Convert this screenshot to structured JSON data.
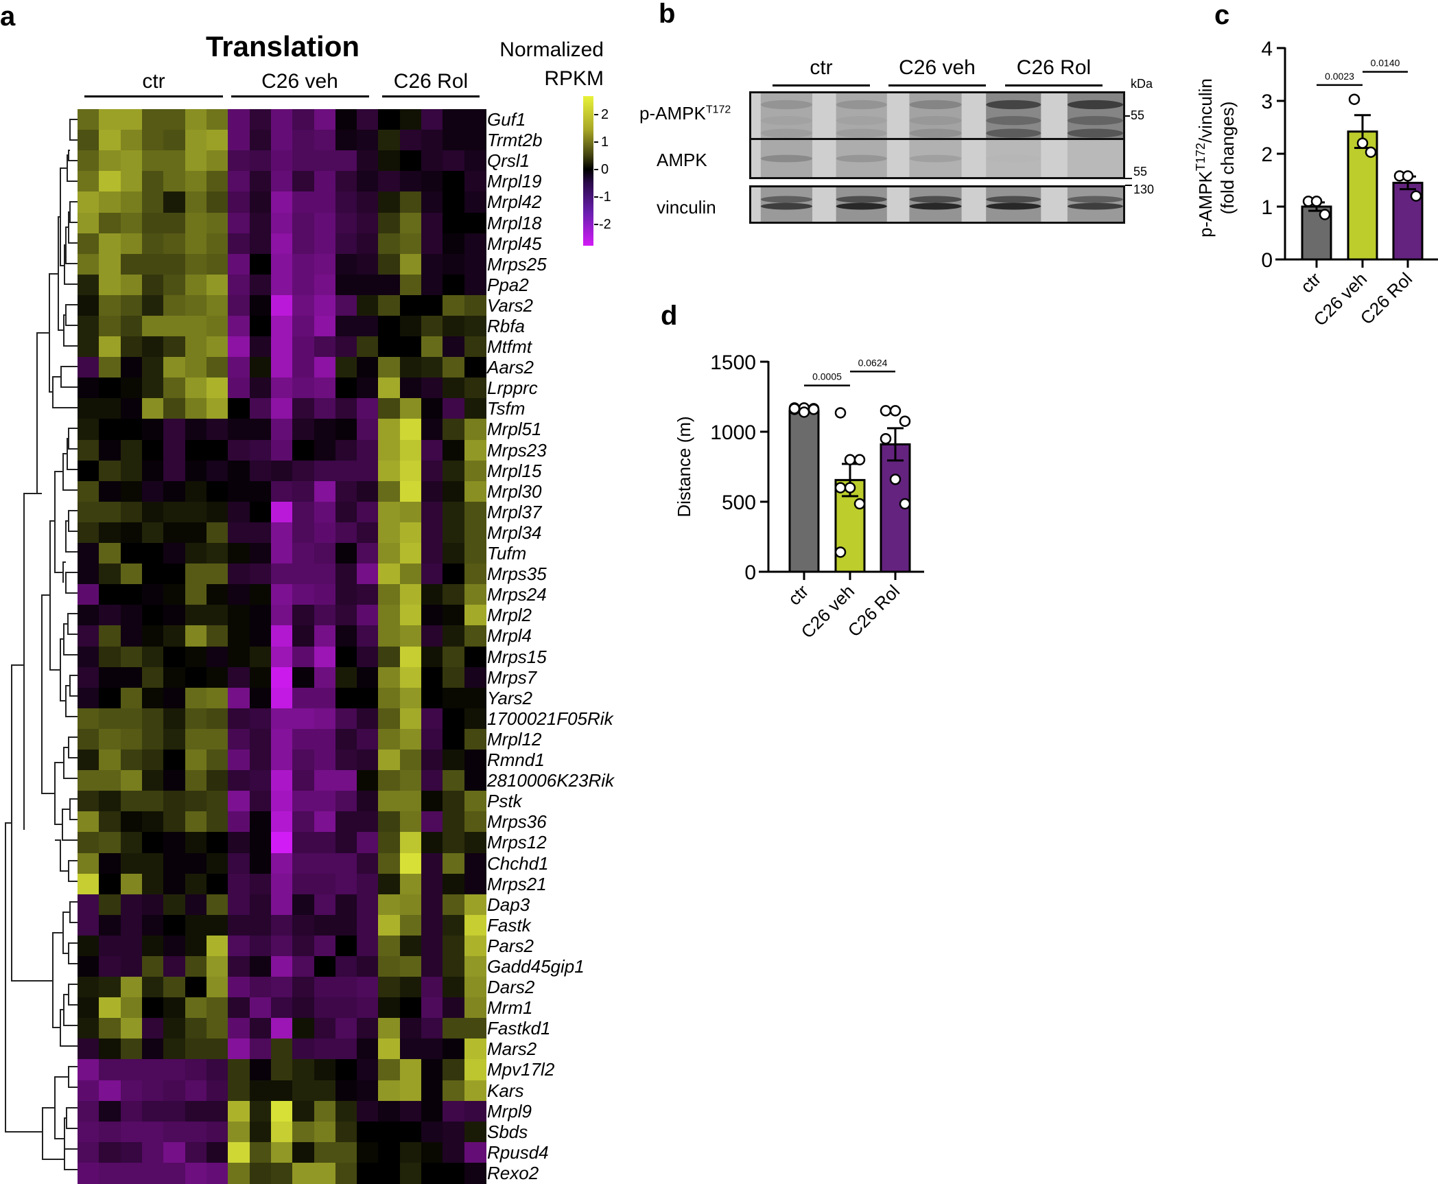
{
  "panels": {
    "a": "a",
    "b": "b",
    "c": "c",
    "d": "d"
  },
  "heatmap": {
    "title": "Translation",
    "groups": [
      {
        "label": "ctr",
        "n": 7
      },
      {
        "label": "C26 veh",
        "n": 6
      },
      {
        "label": "C26 Rol",
        "n": 6
      }
    ],
    "colorbar": {
      "title_line1": "Normalized",
      "title_line2": "RPKM",
      "ticks": [
        "2",
        "1",
        "0",
        "-1",
        "-2"
      ],
      "colors": {
        "high": "#e8f23a",
        "mid": "#000000",
        "low": "#d21cf5"
      }
    },
    "genes": [
      "Guf1",
      "Trmt2b",
      "Qrsl1",
      "Mrpl19",
      "Mrpl42",
      "Mrpl18",
      "Mrpl45",
      "Mrps25",
      "Ppa2",
      "Vars2",
      "Rbfa",
      "Mtfmt",
      "Aars2",
      "Lrpprc",
      "Tsfm",
      "Mrpl51",
      "Mrps23",
      "Mrpl15",
      "Mrpl30",
      "Mrpl37",
      "Mrpl34",
      "Tufm",
      "Mrps35",
      "Mrps24",
      "Mrpl2",
      "Mrpl4",
      "Mrps15",
      "Mrps7",
      "Yars2",
      "1700021F05Rik",
      "Mrpl12",
      "Rmnd1",
      "2810006K23Rik",
      "Pstk",
      "Mrps36",
      "Mrps12",
      "Chchd1",
      "Mrps21",
      "Dap3",
      "Fastk",
      "Pars2",
      "Gadd45gip1",
      "Dars2",
      "Mrm1",
      "Fastkd1",
      "Mars2",
      "Mpv17l2",
      "Kars",
      "Mrpl9",
      "Sbds",
      "Rpusd4",
      "Rexo2"
    ]
  },
  "blot": {
    "groups": [
      "ctr",
      "C26 veh",
      "C26 Rol"
    ],
    "rows": [
      {
        "label": "p-AMPK",
        "sup": "T172",
        "kda": "55"
      },
      {
        "label": "AMPK",
        "sup": "",
        "kda": "55"
      },
      {
        "label": "vinculin",
        "sup": "",
        "kda": "130"
      }
    ],
    "kda_unit": "kDa"
  },
  "chart_data": [
    {
      "panel": "c",
      "type": "bar",
      "categories": [
        "ctr",
        "C26 veh",
        "C26 Rol"
      ],
      "values": [
        1.0,
        2.42,
        1.45
      ],
      "sem": [
        0.08,
        0.31,
        0.12
      ],
      "points": [
        [
          1.1,
          1.1,
          0.85
        ],
        [
          3.03,
          2.2,
          2.03
        ],
        [
          1.58,
          1.58,
          1.2
        ]
      ],
      "colors": [
        "#6b6b6b",
        "#bccd2c",
        "#64237f"
      ],
      "ylabel": "p-AMPK^T172/vinculin (fold changes)",
      "ylabel_main": "p-AMPK",
      "ylabel_sup": "T172",
      "ylabel_rest": "/vinculin",
      "ylabel_line2": "(fold changes)",
      "yticks": [
        "0",
        "1",
        "2",
        "3",
        "4"
      ],
      "ylim": [
        0,
        4
      ],
      "comparisons": [
        {
          "from": 0,
          "to": 1,
          "p": "0.0023",
          "y": 3.3
        },
        {
          "from": 1,
          "to": 2,
          "p": "0.0140",
          "y": 3.55
        }
      ]
    },
    {
      "panel": "d",
      "type": "bar",
      "categories": [
        "ctr",
        "C26 veh",
        "C26 Rol"
      ],
      "values": [
        1150,
        655,
        910
      ],
      "sem": [
        5,
        115,
        115
      ],
      "points": [
        [
          1160,
          1170,
          1165,
          1170,
          1140,
          1160,
          1165
        ],
        [
          1135,
          800,
          800,
          600,
          600,
          485,
          140
        ],
        [
          1150,
          1150,
          1075,
          950,
          660,
          485
        ]
      ],
      "colors": [
        "#6b6b6b",
        "#bccd2c",
        "#64237f"
      ],
      "ylabel": "Distance (m)",
      "yticks": [
        "0",
        "500",
        "1000",
        "1500"
      ],
      "ylim": [
        0,
        1500
      ],
      "comparisons": [
        {
          "from": 0,
          "to": 1,
          "p": "0.0005",
          "y": 1330
        },
        {
          "from": 1,
          "to": 2,
          "p": "0.0624",
          "y": 1430
        }
      ]
    }
  ],
  "heatmap_matrix": [
    [
      1.2,
      1.8,
      1.8,
      1.0,
      1.0,
      1.6,
      1.3,
      -1.2,
      -0.6,
      -1.3,
      -0.9,
      -1.4,
      -0.1,
      -0.6,
      0,
      0.2,
      -0.7,
      -0.2,
      -0.2
    ],
    [
      0.9,
      1.9,
      1.5,
      1.0,
      0.9,
      1.7,
      1.8,
      -1.2,
      -0.5,
      -1.3,
      -1.0,
      -1.1,
      -0.2,
      -0.3,
      0.4,
      -0.5,
      -0.4,
      -0.2,
      -0.2
    ],
    [
      1.1,
      1.6,
      1.7,
      1.2,
      1.2,
      1.7,
      1.5,
      -0.9,
      -0.8,
      -1.2,
      -1.0,
      -1.0,
      -1.0,
      -0.4,
      0.2,
      0,
      -0.4,
      -0.5,
      -0.3
    ],
    [
      1.3,
      2.1,
      1.7,
      0.9,
      1.2,
      1.4,
      1.0,
      -1.1,
      -0.5,
      -1.3,
      -0.6,
      -1.2,
      -0.6,
      -0.3,
      -0.5,
      -0.3,
      -0.2,
      0,
      -0.4
    ],
    [
      1.8,
      1.6,
      1.4,
      0.9,
      0.3,
      1.2,
      0.8,
      -0.9,
      -0.4,
      -1.7,
      -1.2,
      -1.2,
      -0.7,
      -0.5,
      0.3,
      0.8,
      -0.3,
      0,
      -0.3
    ],
    [
      1.7,
      1.0,
      1.2,
      0.8,
      0.8,
      1.3,
      1.2,
      -1.1,
      -0.5,
      -1.6,
      -1.1,
      -1.3,
      -0.8,
      -0.6,
      0.6,
      1.2,
      -0.5,
      0,
      0
    ],
    [
      1.0,
      1.7,
      1.5,
      0.9,
      1.0,
      1.3,
      1.1,
      -0.8,
      -0.5,
      -1.8,
      -1.1,
      -1.3,
      -0.7,
      -0.5,
      0.9,
      1.1,
      -0.5,
      -0.1,
      -0.3
    ],
    [
      1.3,
      1.7,
      0.8,
      0.8,
      0.8,
      1.1,
      1.0,
      -1.3,
      0,
      -1.7,
      -1.3,
      -1.4,
      -0.3,
      -0.4,
      0.6,
      1.6,
      -0.3,
      -0.2,
      -0.3
    ],
    [
      0.4,
      1.7,
      1.5,
      0.6,
      0.9,
      1.4,
      1.7,
      -1.1,
      -0.5,
      -1.7,
      -1.3,
      -1.5,
      -0.2,
      -0.2,
      -0.2,
      1.0,
      -0.3,
      0,
      -0.3
    ],
    [
      0.2,
      1.1,
      0.9,
      0.4,
      1.1,
      1.2,
      1.4,
      -1.0,
      -0.1,
      -2.4,
      -1.4,
      -1.7,
      -1.0,
      0.3,
      0.8,
      0,
      0,
      1.0,
      0.8
    ],
    [
      0.4,
      1.0,
      0.7,
      1.4,
      1.4,
      1.4,
      1.3,
      -1.4,
      0,
      -2.0,
      -1.3,
      -1.8,
      -0.3,
      -0.3,
      0,
      0.2,
      0.6,
      0.3,
      0.4
    ],
    [
      0.4,
      1.8,
      0.5,
      0.3,
      0.6,
      1.4,
      1.6,
      -1.8,
      -0.4,
      -2.0,
      -1.2,
      -0.9,
      -0.6,
      0.6,
      0,
      0,
      1.2,
      -0.3,
      0.6
    ],
    [
      -0.8,
      1.1,
      -0.1,
      0.4,
      1.6,
      1.4,
      1.0,
      -1.3,
      0.2,
      -2.0,
      -1.2,
      -1.8,
      0.4,
      -0.1,
      1.2,
      0.3,
      0.4,
      1.0,
      0
    ],
    [
      -0.1,
      0,
      0.1,
      0.4,
      1.1,
      1.7,
      2.0,
      -1.2,
      -0.4,
      -1.5,
      -1.3,
      -1.4,
      0,
      -0.2,
      1.9,
      -0.2,
      -0.4,
      0.3,
      0.5
    ],
    [
      0.2,
      0.2,
      -0.1,
      1.6,
      0.8,
      1.4,
      1.8,
      0,
      -0.9,
      -1.8,
      -0.6,
      -1.0,
      -0.6,
      -1.1,
      0.8,
      1.6,
      -0.1,
      -0.8,
      0.3
    ],
    [
      0.3,
      0,
      0,
      -0.1,
      -0.6,
      -0.2,
      -0.4,
      -0.2,
      -0.2,
      -1.3,
      -0.4,
      -0.2,
      -0.1,
      -1.0,
      1.8,
      2.4,
      -0.2,
      0.6,
      1.4
    ],
    [
      0.6,
      -0.1,
      0.4,
      0,
      -0.6,
      0,
      0,
      -0.6,
      -0.7,
      -1.2,
      0,
      -0.2,
      -0.5,
      -0.8,
      1.8,
      2.2,
      -0.8,
      0.1,
      1.7
    ],
    [
      0,
      0.6,
      0.4,
      -0.1,
      -0.6,
      -0.1,
      -0.3,
      -0.1,
      -0.5,
      -0.4,
      -0.6,
      -0.8,
      -0.8,
      -0.8,
      1.9,
      2.3,
      -0.6,
      0.4,
      1.3
    ],
    [
      0.8,
      -0.1,
      0.1,
      -0.3,
      -0.1,
      0.2,
      0,
      -0.1,
      -0.1,
      -0.9,
      -0.8,
      -1.7,
      -0.6,
      -0.4,
      1.2,
      2.4,
      -0.4,
      0.2,
      1.6
    ],
    [
      0.7,
      0.7,
      0.5,
      0.2,
      0.3,
      0.3,
      0.2,
      -0.4,
      0,
      -2.4,
      -1.0,
      -1.3,
      -0.5,
      -0.9,
      1.7,
      1.6,
      -0.6,
      0.4,
      0.9
    ],
    [
      0.5,
      0.2,
      0.1,
      0.4,
      0.1,
      0.1,
      0.8,
      -0.5,
      -0.5,
      -1.6,
      -1.0,
      -1.2,
      -0.9,
      -0.6,
      1.7,
      2.0,
      -0.6,
      0.4,
      0.9
    ],
    [
      -0.2,
      1.1,
      0,
      0,
      -0.2,
      0.3,
      0.4,
      0.1,
      -0.2,
      -1.6,
      -1.1,
      -1.0,
      -0.1,
      -1.0,
      1.6,
      2.1,
      -0.6,
      0.3,
      0.9
    ],
    [
      -0.2,
      0.4,
      1.1,
      0,
      0,
      1.0,
      1.0,
      -0.5,
      -0.6,
      -1.1,
      -1.1,
      -1.1,
      -0.5,
      -1.5,
      2.0,
      1.4,
      -0.7,
      0,
      1.0
    ],
    [
      -1.2,
      0,
      0,
      -0.1,
      0.1,
      1.0,
      0.1,
      -0.2,
      0.1,
      -1.6,
      -1.3,
      -1.2,
      -0.5,
      -0.6,
      1.3,
      2.0,
      0.2,
      0.5,
      1.4
    ],
    [
      -0.2,
      -0.4,
      -0.2,
      0,
      -0.1,
      0.3,
      0.3,
      0.1,
      -0.1,
      -1.5,
      -0.5,
      -0.9,
      -0.6,
      -1.2,
      1.4,
      2.1,
      -0.1,
      0.1,
      1.9
    ],
    [
      -0.6,
      0.8,
      -0.2,
      0.1,
      0.3,
      1.5,
      0.8,
      0.1,
      -0.1,
      -2.3,
      -0.4,
      -1.5,
      -0.2,
      -0.8,
      1.4,
      1.6,
      -0.5,
      0.3,
      0.9
    ],
    [
      -0.3,
      0.5,
      0.7,
      0.4,
      0,
      0.1,
      -0.2,
      0.1,
      0.3,
      -2.0,
      -1.2,
      -2.0,
      0,
      -0.5,
      0.7,
      2.3,
      0.2,
      0.7,
      0
    ],
    [
      -0.5,
      -0.1,
      -0.1,
      0.6,
      0.1,
      0,
      0.1,
      -0.5,
      0.1,
      -2.6,
      -0.1,
      -1.4,
      0.3,
      -0.1,
      1.5,
      2.1,
      0,
      0.6,
      -0.3
    ],
    [
      -0.3,
      0,
      1.0,
      0.1,
      -0.1,
      1.2,
      1.3,
      -1.5,
      -0.1,
      -2.5,
      -1.2,
      -1.2,
      0,
      0,
      1.3,
      1.7,
      0,
      0.1,
      0.1
    ],
    [
      1.0,
      0.9,
      0.9,
      0.7,
      0.3,
      0.9,
      0.8,
      -0.6,
      -0.7,
      -1.6,
      -1.6,
      -1.5,
      -0.9,
      -0.5,
      1.0,
      1.9,
      -0.8,
      0,
      0.2
    ],
    [
      0.8,
      1.1,
      1.0,
      0.7,
      0.4,
      1.1,
      1.1,
      -0.9,
      -0.6,
      -1.7,
      -1.2,
      -1.2,
      -0.5,
      -0.8,
      1.3,
      1.6,
      -0.7,
      0,
      0.8
    ],
    [
      0.3,
      1.3,
      0.7,
      0.5,
      0,
      1.3,
      0.9,
      -1.3,
      -0.6,
      -1.7,
      -1.0,
      -1.2,
      -0.6,
      -0.5,
      1.8,
      1.1,
      -0.5,
      0.2,
      -0.1
    ],
    [
      1.1,
      1.1,
      1.4,
      0.3,
      -0.1,
      1.0,
      0.5,
      -0.6,
      -0.7,
      -2.2,
      -0.9,
      -1.5,
      -1.5,
      0.1,
      1.0,
      1.2,
      -0.7,
      0.9,
      -0.1
    ],
    [
      0.5,
      0.3,
      0.7,
      0.7,
      0.5,
      0.6,
      0.7,
      -1.6,
      -0.6,
      -2.1,
      -1.3,
      -1.3,
      -1.0,
      -0.4,
      1.4,
      1.4,
      0.1,
      0.5,
      1.2
    ],
    [
      1.5,
      0.5,
      0.1,
      0.2,
      0.5,
      1.1,
      0.7,
      -1.2,
      -0.1,
      -2.3,
      -1.0,
      -1.6,
      -0.5,
      -0.5,
      0.7,
      1.3,
      -1.0,
      0.5,
      1.0
    ],
    [
      0.8,
      0.9,
      0.4,
      0,
      -0.1,
      0.2,
      0,
      -0.4,
      -0.1,
      -2.7,
      -0.8,
      -0.8,
      -0.5,
      -1.1,
      0.8,
      2.2,
      0.2,
      0.5,
      0.3
    ],
    [
      1.4,
      -0.1,
      0.3,
      0.3,
      -0.1,
      -0.1,
      0.2,
      -0.7,
      -0.1,
      -1.7,
      -1.0,
      -1.0,
      -1.0,
      -0.6,
      1.0,
      2.5,
      -0.5,
      1.2,
      -0.2
    ],
    [
      2.3,
      0,
      1.5,
      0.3,
      -0.1,
      0.3,
      0,
      -0.8,
      -0.6,
      -1.6,
      -0.9,
      -0.9,
      -1.0,
      -0.8,
      0.3,
      1.6,
      -0.5,
      0.2,
      -0.2
    ],
    [
      -0.8,
      0.6,
      -0.5,
      -0.4,
      0.4,
      -0.3,
      0.9,
      -0.8,
      -0.5,
      -1.6,
      -0.3,
      -1.0,
      -0.4,
      -0.8,
      1.6,
      1.5,
      -0.5,
      1.0,
      1.8
    ],
    [
      -0.8,
      -0.2,
      -0.5,
      -0.2,
      0,
      0.2,
      0.2,
      -0.5,
      -0.5,
      -0.8,
      -0.5,
      -0.4,
      -0.4,
      -0.8,
      2.0,
      1.2,
      -0.5,
      0.4,
      2.3
    ],
    [
      0.2,
      -0.5,
      -0.5,
      0.2,
      -0.2,
      0.2,
      2.0,
      -1.0,
      -0.7,
      -1.0,
      -0.6,
      -1.0,
      0,
      -0.8,
      1.1,
      0.3,
      -0.5,
      0.5,
      2.0
    ],
    [
      -0.1,
      -0.6,
      -0.5,
      0.8,
      -0.6,
      0.8,
      1.7,
      -0.6,
      -0.2,
      -1.7,
      -1.0,
      0,
      -0.7,
      -0.5,
      1.0,
      1.1,
      -0.5,
      0.5,
      1.7
    ],
    [
      0.3,
      0.4,
      1.6,
      0.4,
      0.8,
      0,
      1.6,
      -1.2,
      -0.9,
      -1.0,
      -0.6,
      -0.9,
      -0.9,
      -1.0,
      0.5,
      0.3,
      -0.9,
      0.3,
      1.6
    ],
    [
      0.2,
      2.0,
      1.4,
      0,
      0.2,
      1.2,
      1.0,
      -0.5,
      -1.3,
      -0.7,
      -0.5,
      -0.8,
      -0.8,
      -0.9,
      0.2,
      0,
      -1.0,
      -0.4,
      1.5
    ],
    [
      0.3,
      1.0,
      1.7,
      -0.6,
      0.3,
      0.7,
      1.0,
      -1.2,
      -0.5,
      -2.0,
      0.2,
      -0.6,
      -1.0,
      -0.5,
      1.6,
      -0.4,
      -0.7,
      0.8,
      0.8
    ],
    [
      -0.5,
      0.2,
      0.7,
      -0.2,
      0.4,
      0.6,
      0.6,
      -1.7,
      -1.0,
      0.6,
      -0.7,
      -0.8,
      -0.8,
      -0.2,
      2.0,
      -0.3,
      -0.3,
      -0.1,
      2.1
    ],
    [
      -1.5,
      -1.0,
      -1.0,
      -1.0,
      -1.0,
      -0.9,
      -0.7,
      0.6,
      -0.1,
      0.6,
      0.4,
      0.2,
      0,
      -0.3,
      1.1,
      1.8,
      -0.1,
      0.6,
      2.2
    ],
    [
      -1.2,
      -1.6,
      -1.1,
      -1.0,
      -0.9,
      -1.1,
      -0.8,
      0.6,
      0.2,
      0.2,
      0.4,
      0.4,
      -0.1,
      -0.2,
      1.7,
      1.8,
      -0.1,
      1.1,
      1.8
    ],
    [
      -1.0,
      -0.3,
      -0.9,
      -0.7,
      -0.7,
      -0.5,
      -0.5,
      2.0,
      0.4,
      2.5,
      0.3,
      1.2,
      0.4,
      -0.4,
      -0.2,
      -0.4,
      -0.1,
      -0.8,
      -0.7
    ],
    [
      -1.1,
      -1.0,
      -1.1,
      -1.1,
      -1.0,
      -1.0,
      -0.9,
      1.6,
      0.3,
      2.3,
      1.2,
      1.4,
      0.5,
      0,
      0,
      0,
      -0.3,
      -0.4,
      0.3
    ],
    [
      -1.0,
      -0.6,
      -0.7,
      -1.1,
      -1.5,
      -0.8,
      -0.4,
      2.4,
      0.9,
      1.7,
      0.2,
      0.9,
      0.9,
      0.1,
      0,
      0.3,
      0.1,
      -0.4,
      -1.3
    ],
    [
      -1.2,
      -1.1,
      -1.1,
      -1.1,
      -1.1,
      -1.4,
      -1.3,
      1.3,
      0.6,
      0.7,
      1.7,
      1.7,
      0.8,
      0,
      0,
      0.4,
      0,
      0,
      -0.2
    ]
  ]
}
